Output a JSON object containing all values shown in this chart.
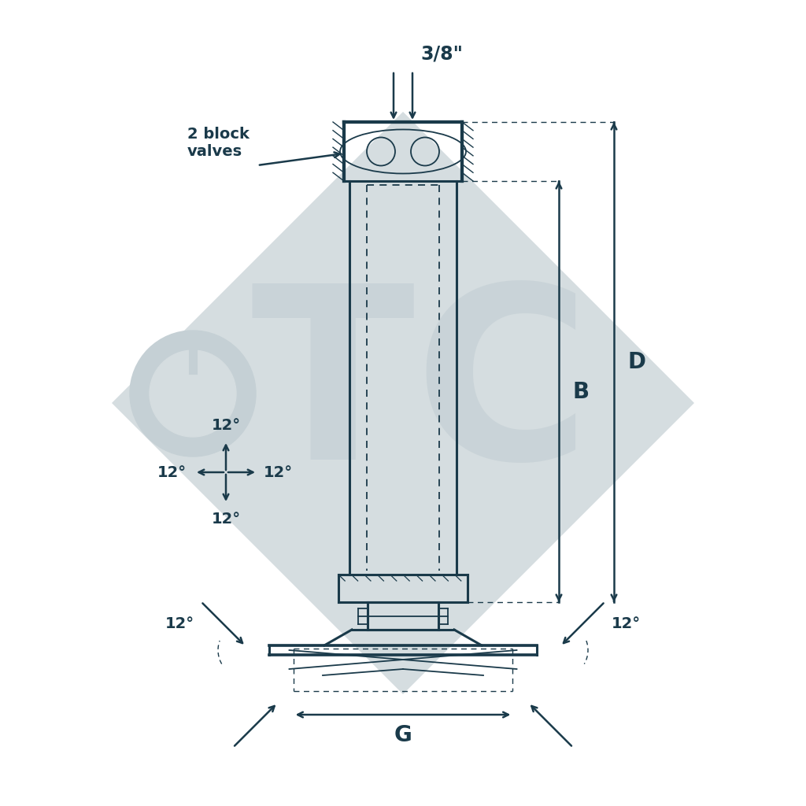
{
  "bg_color": "#ffffff",
  "line_color": "#1a3a4a",
  "watermark_color": "#d5dde0",
  "figsize": [
    10.24,
    10.24
  ],
  "dpi": 100,
  "label_3_8": "3/8\"",
  "label_B": "B",
  "label_D": "D",
  "label_G": "G",
  "label_12deg": "12°",
  "label_block_valves": "2 block\nvalves"
}
